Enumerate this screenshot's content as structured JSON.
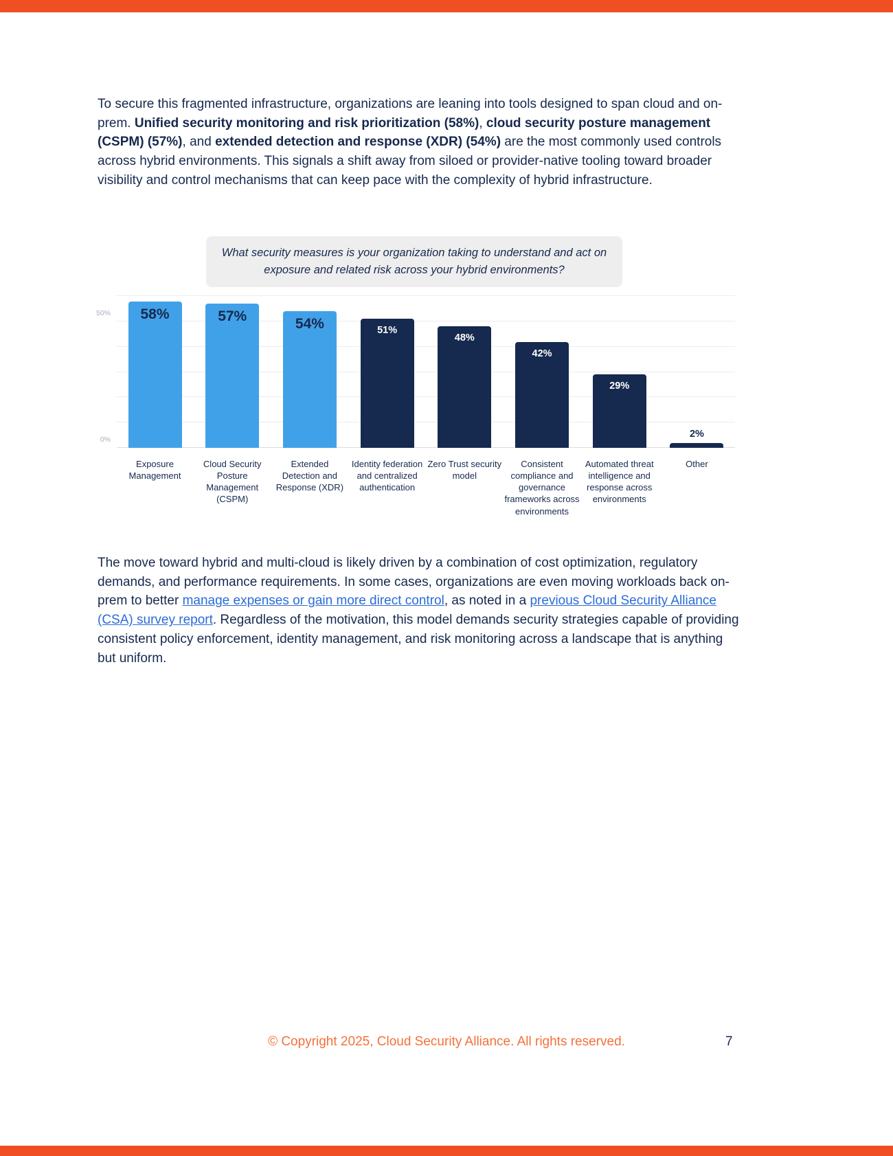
{
  "colors": {
    "accent_bar": "#F04E23",
    "footer_orange": "#F4703B",
    "navy_text": "#16294E",
    "link_blue": "#2B6BD8",
    "bar_light_blue": "#41A1E8",
    "bar_dark_navy": "#16294E",
    "question_box_bg": "#EEEEEE"
  },
  "intro_paragraph": {
    "segments": [
      {
        "text": "To secure this fragmented infrastructure, organizations are leaning into tools designed to span cloud and on-prem. "
      },
      {
        "text": "Unified security monitoring and risk prioritization (58%)",
        "bold": true
      },
      {
        "text": ", "
      },
      {
        "text": "cloud security posture management (CSPM) (57%)",
        "bold": true
      },
      {
        "text": ", and "
      },
      {
        "text": "extended detection and response (XDR) (54%)",
        "bold": true
      },
      {
        "text": " are the most commonly used controls across hybrid environments. This signals a shift away from siloed or provider-native tooling toward broader visibility and control mechanisms that can keep pace with the complexity of hybrid infrastructure."
      }
    ]
  },
  "question": "What security measures is your organization taking to understand and act on exposure and related risk across your hybrid environments?",
  "chart_data": {
    "type": "bar",
    "title": "What security measures is your organization taking to understand and act on exposure and related risk across your hybrid environments?",
    "categories": [
      "Exposure Management",
      "Cloud Security Posture Management (CSPM)",
      "Extended Detection and Response (XDR)",
      "Identity federation and centralized authentication",
      "Zero Trust security model",
      "Consistent compliance and governance frameworks across environments",
      "Automated threat intelligence and response across environments",
      "Other"
    ],
    "values": [
      58,
      57,
      54,
      51,
      48,
      42,
      29,
      2
    ],
    "value_labels": [
      "58%",
      "57%",
      "54%",
      "51%",
      "48%",
      "42%",
      "29%",
      "2%"
    ],
    "bar_colors": [
      "light",
      "light",
      "light",
      "dark",
      "dark",
      "dark",
      "dark",
      "dark"
    ],
    "colors": {
      "light": "#41A1E8",
      "dark": "#16294E"
    },
    "xlabel": "",
    "ylabel": "",
    "ylim": [
      0,
      62
    ],
    "yticks": [
      {
        "value": 0,
        "label": "0%"
      },
      {
        "value": 50,
        "label": "50%"
      }
    ],
    "gridlines": [
      10,
      20,
      30,
      40,
      50,
      60,
      0
    ],
    "grid": true,
    "legend": null
  },
  "closing_paragraph": {
    "segments": [
      {
        "text": "The move toward hybrid and multi-cloud is likely driven by a combination of cost optimization, regulatory demands, and performance requirements. In some cases, organizations are even moving workloads back on-prem to better "
      },
      {
        "text": "manage expenses or gain more direct control",
        "link": true,
        "name": "text-link-manage-expenses"
      },
      {
        "text": ", as noted in a "
      },
      {
        "text": "previous Cloud Security Alliance (CSA) survey report",
        "link": true,
        "name": "text-link-csa-survey-report"
      },
      {
        "text": ". Regardless of the motivation, this model demands security strategies capable of providing consistent policy enforcement, identity management, and risk monitoring across a landscape that is anything but uniform."
      }
    ]
  },
  "footer": {
    "copyright": "© Copyright 2025, Cloud Security Alliance. All rights reserved.",
    "page_number": "7"
  }
}
